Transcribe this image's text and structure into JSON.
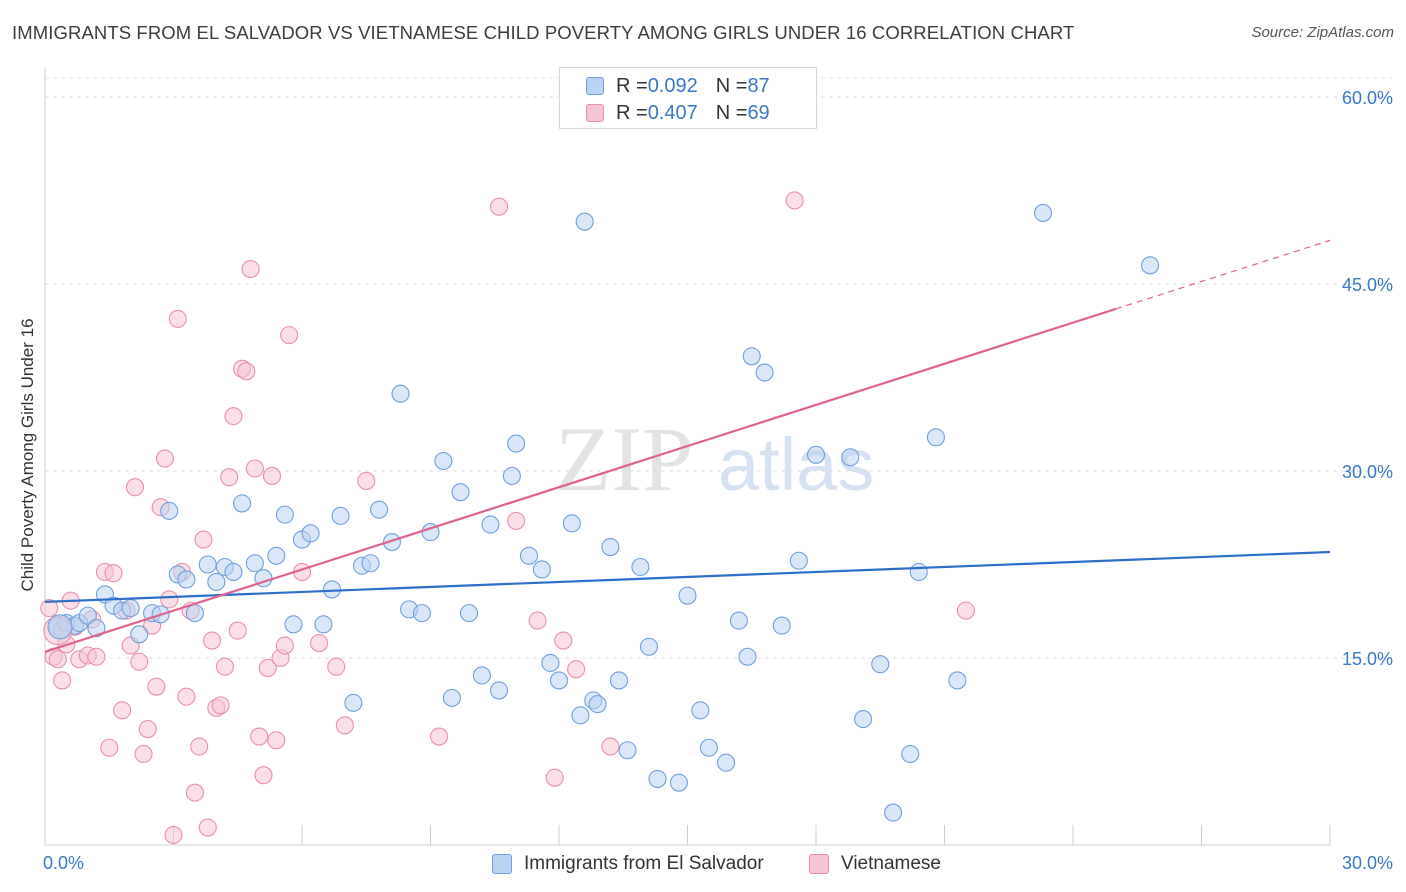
{
  "header": {
    "title": "IMMIGRANTS FROM EL SALVADOR VS VIETNAMESE CHILD POVERTY AMONG GIRLS UNDER 16 CORRELATION CHART",
    "source": "Source: ZipAtlas.com"
  },
  "watermark": {
    "part1": "ZIP",
    "part2": "atlas"
  },
  "legend": {
    "rows": [
      {
        "r_label": "R = ",
        "r_value": "0.092",
        "n_label": "N = ",
        "n_value": "87"
      },
      {
        "r_label": "R = ",
        "r_value": "0.407",
        "n_label": "N = ",
        "n_value": "69"
      }
    ]
  },
  "chart_data": {
    "type": "scatter",
    "title": "IMMIGRANTS FROM EL SALVADOR VS VIETNAMESE CHILD POVERTY AMONG GIRLS UNDER 16 CORRELATION CHART",
    "ylabel": "Child Poverty Among Girls Under 16",
    "xlabel": "",
    "xlim": [
      0,
      30
    ],
    "ylim": [
      0,
      60
    ],
    "x_ticks": [
      "0.0%",
      "30.0%"
    ],
    "y_ticks": [
      {
        "value": 15,
        "label": "15.0%"
      },
      {
        "value": 30,
        "label": "30.0%"
      },
      {
        "value": 45,
        "label": "45.0%"
      },
      {
        "value": 60,
        "label": "60.0%"
      }
    ],
    "grid": true,
    "legend_position": "top-center",
    "colors": {
      "blue_fill": "#b9d3f3",
      "blue_stroke": "#6fa0dd",
      "blue_line": "#2b6fc9",
      "pink_fill": "#f7c4d4",
      "pink_stroke": "#e98fae",
      "pink_line": "#e0628f",
      "tick_label": "#3a78c9"
    },
    "series": [
      {
        "name": "Immigrants from El Salvador",
        "r": 0.092,
        "n": 87,
        "trend": {
          "x0": 0,
          "y0": 19.5,
          "x1": 30,
          "y1": 23.5
        },
        "points": [
          [
            0.3,
            17.5
          ],
          [
            0.4,
            17.3
          ],
          [
            0.5,
            17.8
          ],
          [
            0.7,
            17.6
          ],
          [
            0.8,
            17.8
          ],
          [
            1.0,
            18.4
          ],
          [
            1.2,
            17.4
          ],
          [
            1.4,
            20.1
          ],
          [
            1.6,
            19.2
          ],
          [
            1.8,
            18.8
          ],
          [
            2.0,
            19.0
          ],
          [
            2.2,
            16.9
          ],
          [
            2.5,
            18.6
          ],
          [
            2.7,
            18.5
          ],
          [
            2.9,
            26.8
          ],
          [
            3.1,
            21.7
          ],
          [
            3.3,
            21.3
          ],
          [
            3.5,
            18.6
          ],
          [
            3.8,
            22.5
          ],
          [
            4.0,
            21.1
          ],
          [
            4.2,
            22.3
          ],
          [
            4.4,
            21.9
          ],
          [
            4.6,
            27.4
          ],
          [
            4.9,
            22.6
          ],
          [
            5.1,
            21.4
          ],
          [
            5.4,
            23.2
          ],
          [
            5.6,
            26.5
          ],
          [
            5.8,
            17.7
          ],
          [
            6.0,
            24.5
          ],
          [
            6.2,
            25.0
          ],
          [
            6.5,
            17.7
          ],
          [
            6.7,
            20.5
          ],
          [
            6.9,
            26.4
          ],
          [
            7.2,
            11.4
          ],
          [
            7.4,
            22.4
          ],
          [
            7.6,
            22.6
          ],
          [
            7.8,
            26.9
          ],
          [
            8.1,
            24.3
          ],
          [
            8.3,
            36.2
          ],
          [
            8.5,
            18.9
          ],
          [
            8.8,
            18.6
          ],
          [
            9.0,
            25.1
          ],
          [
            9.3,
            30.8
          ],
          [
            9.5,
            11.8
          ],
          [
            9.7,
            28.3
          ],
          [
            9.9,
            18.6
          ],
          [
            10.2,
            13.6
          ],
          [
            10.4,
            25.7
          ],
          [
            10.6,
            12.4
          ],
          [
            10.9,
            29.6
          ],
          [
            11.0,
            32.2
          ],
          [
            11.3,
            23.2
          ],
          [
            11.6,
            22.1
          ],
          [
            11.8,
            14.6
          ],
          [
            12.0,
            13.2
          ],
          [
            12.3,
            25.8
          ],
          [
            12.5,
            10.4
          ],
          [
            12.8,
            11.6
          ],
          [
            12.9,
            11.3
          ],
          [
            12.6,
            50.0
          ],
          [
            13.2,
            23.9
          ],
          [
            13.4,
            13.2
          ],
          [
            13.6,
            7.6
          ],
          [
            13.9,
            22.3
          ],
          [
            14.1,
            15.9
          ],
          [
            14.3,
            5.3
          ],
          [
            14.8,
            5.0
          ],
          [
            15.0,
            20.0
          ],
          [
            15.3,
            10.8
          ],
          [
            15.5,
            7.8
          ],
          [
            15.9,
            6.6
          ],
          [
            16.2,
            18.0
          ],
          [
            16.4,
            15.1
          ],
          [
            16.5,
            39.2
          ],
          [
            16.8,
            37.9
          ],
          [
            17.2,
            17.6
          ],
          [
            17.6,
            22.8
          ],
          [
            18.0,
            31.3
          ],
          [
            18.8,
            31.1
          ],
          [
            19.1,
            10.1
          ],
          [
            19.5,
            14.5
          ],
          [
            19.8,
            2.6
          ],
          [
            20.2,
            7.3
          ],
          [
            20.4,
            21.9
          ],
          [
            20.8,
            32.7
          ],
          [
            21.3,
            13.2
          ],
          [
            23.3,
            50.7
          ],
          [
            25.8,
            46.5
          ]
        ]
      },
      {
        "name": "Vietnamese",
        "r": 0.407,
        "n": 69,
        "trend": {
          "x0": 0,
          "y0": 15.5,
          "x1": 25,
          "y1": 43.0,
          "x2": 30,
          "y2": 48.5
        },
        "points": [
          [
            0.1,
            19.0
          ],
          [
            0.2,
            15.1
          ],
          [
            0.3,
            14.9
          ],
          [
            0.4,
            13.2
          ],
          [
            0.5,
            16.1
          ],
          [
            0.6,
            19.6
          ],
          [
            0.7,
            17.5
          ],
          [
            0.8,
            14.9
          ],
          [
            1.0,
            15.2
          ],
          [
            1.1,
            18.1
          ],
          [
            1.2,
            15.1
          ],
          [
            1.4,
            21.9
          ],
          [
            1.5,
            7.8
          ],
          [
            1.6,
            21.8
          ],
          [
            1.8,
            10.8
          ],
          [
            1.9,
            18.8
          ],
          [
            2.0,
            16.0
          ],
          [
            2.1,
            28.7
          ],
          [
            2.2,
            14.7
          ],
          [
            2.3,
            7.3
          ],
          [
            2.4,
            9.3
          ],
          [
            2.5,
            17.6
          ],
          [
            2.6,
            12.7
          ],
          [
            2.7,
            27.1
          ],
          [
            2.8,
            31.0
          ],
          [
            2.9,
            19.7
          ],
          [
            3.0,
            0.8
          ],
          [
            3.1,
            42.2
          ],
          [
            3.2,
            21.9
          ],
          [
            3.3,
            11.9
          ],
          [
            3.4,
            18.8
          ],
          [
            3.5,
            4.2
          ],
          [
            3.6,
            7.9
          ],
          [
            3.7,
            24.5
          ],
          [
            3.8,
            1.4
          ],
          [
            3.9,
            16.4
          ],
          [
            4.0,
            11.0
          ],
          [
            4.1,
            11.2
          ],
          [
            4.2,
            14.3
          ],
          [
            4.3,
            29.5
          ],
          [
            4.4,
            34.4
          ],
          [
            4.5,
            17.2
          ],
          [
            4.6,
            38.2
          ],
          [
            4.7,
            38.0
          ],
          [
            4.8,
            46.2
          ],
          [
            4.9,
            30.2
          ],
          [
            5.0,
            8.7
          ],
          [
            5.1,
            5.6
          ],
          [
            5.2,
            14.2
          ],
          [
            5.3,
            29.6
          ],
          [
            5.4,
            8.4
          ],
          [
            5.5,
            15.0
          ],
          [
            5.6,
            16.0
          ],
          [
            5.7,
            40.9
          ],
          [
            6.0,
            21.9
          ],
          [
            6.4,
            16.2
          ],
          [
            6.8,
            14.3
          ],
          [
            7.0,
            9.6
          ],
          [
            7.5,
            29.2
          ],
          [
            9.2,
            8.7
          ],
          [
            10.6,
            51.2
          ],
          [
            11.0,
            26.0
          ],
          [
            11.5,
            18.0
          ],
          [
            11.9,
            5.4
          ],
          [
            12.1,
            16.4
          ],
          [
            12.4,
            14.1
          ],
          [
            13.2,
            7.9
          ],
          [
            17.5,
            51.7
          ],
          [
            21.5,
            18.8
          ]
        ]
      }
    ]
  },
  "bottom_legend": {
    "item1": "Immigrants from El Salvador",
    "item2": "Vietnamese"
  }
}
